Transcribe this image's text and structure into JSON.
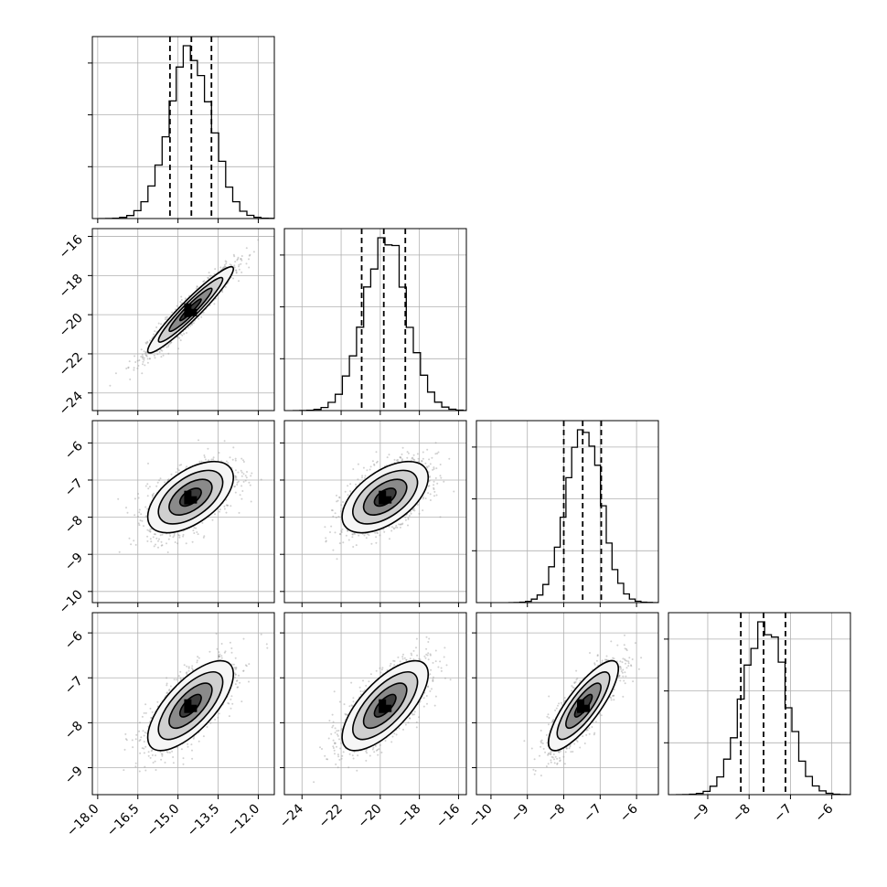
{
  "chart_data": {
    "type": "corner",
    "parameters": 4,
    "grid": true,
    "quantiles": [
      0.16,
      0.5,
      0.84
    ],
    "axes": {
      "x": [
        {
          "range": [
            -18.2,
            -11.4
          ],
          "ticks": [
            -18.0,
            -16.5,
            -15.0,
            -13.5,
            -12.0
          ],
          "tick_labels": [
            "−18.0",
            "−16.5",
            "−15.0",
            "−13.5",
            "−12.0"
          ]
        },
        {
          "range": [
            -24.9,
            -15.6
          ],
          "ticks": [
            -24,
            -22,
            -20,
            -18,
            -16
          ],
          "tick_labels": [
            "−24",
            "−22",
            "−20",
            "−18",
            "−16"
          ]
        },
        {
          "range": [
            -10.4,
            -5.4
          ],
          "ticks": [
            -10,
            -9,
            -8,
            -7,
            -6
          ],
          "tick_labels": [
            "−10",
            "−9",
            "−8",
            "−7",
            "−6"
          ]
        },
        {
          "range": [
            -9.95,
            -5.55
          ],
          "ticks": [
            -9,
            -8,
            -7,
            -6
          ],
          "tick_labels": [
            "−9",
            "−8",
            "−7",
            "−6"
          ]
        }
      ],
      "y": [
        null,
        {
          "range": [
            -24.9,
            -15.6
          ],
          "ticks": [
            -24,
            -22,
            -20,
            -18,
            -16
          ],
          "tick_labels": [
            "−24",
            "−22",
            "−20",
            "−18",
            "−16"
          ]
        },
        {
          "range": [
            -10.3,
            -5.4
          ],
          "ticks": [
            -10,
            -9,
            -8,
            -7,
            -6
          ],
          "tick_labels": [
            "−10",
            "−9",
            "−8",
            "−7",
            "−6"
          ]
        },
        {
          "range": [
            -9.6,
            -5.55
          ],
          "ticks": [
            -9,
            -8,
            -7,
            -6
          ],
          "tick_labels": [
            "−9",
            "−8",
            "−7",
            "−6"
          ]
        }
      ]
    },
    "marginals": [
      {
        "mean": -14.53,
        "sd": 0.8,
        "q16": -15.3,
        "q50": -14.5,
        "q84": -13.75
      },
      {
        "mean": -19.75,
        "sd": 1.1,
        "q16": -20.95,
        "q50": -19.82,
        "q84": -18.72
      },
      {
        "mean": -7.46,
        "sd": 0.48,
        "q16": -8.0,
        "q50": -7.48,
        "q84": -6.97
      },
      {
        "mean": -7.62,
        "sd": 0.5,
        "q16": -8.2,
        "q50": -7.65,
        "q84": -7.12
      }
    ],
    "correlations": [
      {
        "row": 1,
        "col": 0,
        "r": 0.95
      },
      {
        "row": 2,
        "col": 0,
        "r": 0.55
      },
      {
        "row": 2,
        "col": 1,
        "r": 0.55
      },
      {
        "row": 3,
        "col": 0,
        "r": 0.7
      },
      {
        "row": 3,
        "col": 1,
        "r": 0.7
      },
      {
        "row": 3,
        "col": 2,
        "r": 0.82
      }
    ]
  }
}
